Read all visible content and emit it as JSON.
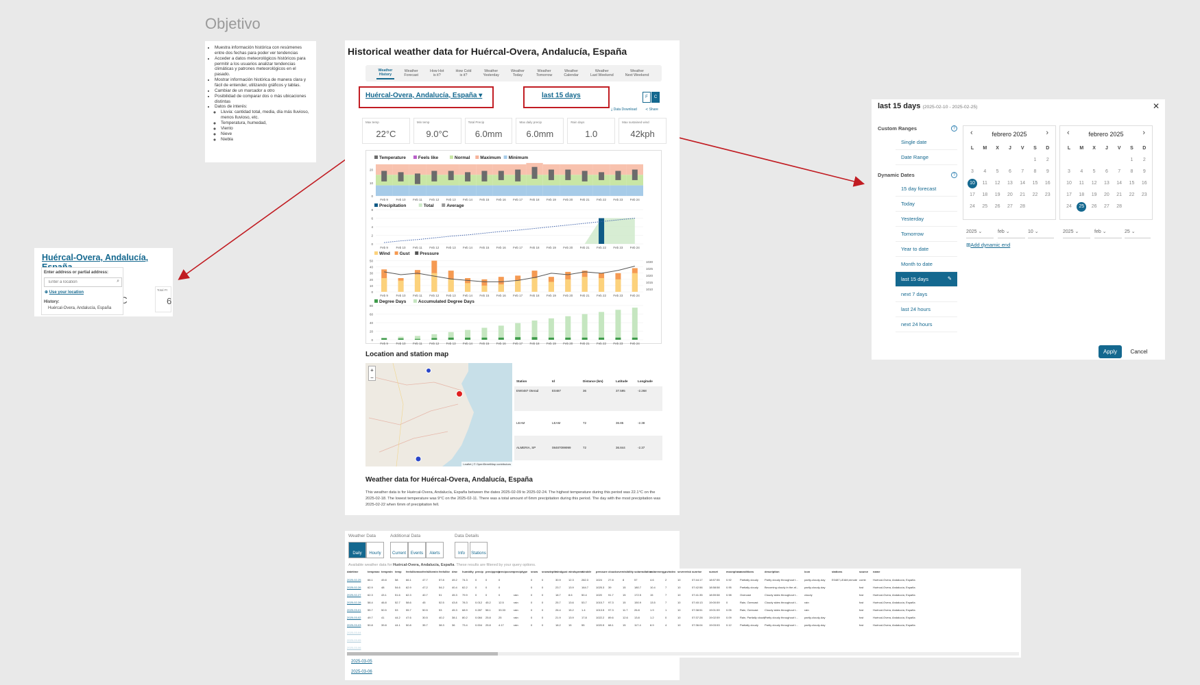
{
  "left_panel": {
    "title": "Objetivo",
    "bullets": [
      "Muestra información histórica con resúmenes entre dos fechas para poder ver tendencias",
      "Acceder a datos meteorológicos históricos para permitir a los usuarios analizar tendencias climáticas y patrones meteorológicos en el pasado.",
      "Mostrar información histórica de manera clara y fácil de entender, utilizando gráficos y tablas.",
      "Cambiar de un marcador a otro",
      "Posibilidad de comparar dos o más ubicaciones distintas",
      "Datos de interés:"
    ],
    "sub_bullets": [
      "Lluvia: cantidad total, media, día más lluvioso, menos lluvioso, etc.",
      "Temperatura, humedad,",
      "Viento",
      "Nieve",
      "Niebla"
    ]
  },
  "page": {
    "title": "Historical weather data for Huércal-Overa, Andalucía, España",
    "tabs": [
      {
        "l1": "Weather",
        "l2": "History"
      },
      {
        "l1": "Weather",
        "l2": "Forecast"
      },
      {
        "l1": "How Hot",
        "l2": "is it?"
      },
      {
        "l1": "How Cold",
        "l2": "is it?"
      },
      {
        "l1": "Weather",
        "l2": "Yesterday"
      },
      {
        "l1": "Weather",
        "l2": "Today"
      },
      {
        "l1": "Weather",
        "l2": "Tomorrow"
      },
      {
        "l1": "Weather",
        "l2": "Calendar"
      },
      {
        "l1": "Weather",
        "l2": "Last Weekend"
      },
      {
        "l1": "Weather",
        "l2": "Next Weekend"
      }
    ],
    "location": "Huércal-Overa, Andalucía, España ▾",
    "date_range": "last 15 days",
    "unit_f": "F",
    "unit_c": "C",
    "data_download": "Data Download",
    "share": "Share",
    "stats": [
      {
        "label": "Max temp",
        "value": "22°C"
      },
      {
        "label": "Min temp",
        "value": "9.0°C"
      },
      {
        "label": "Total Precip",
        "value": "6.0mm"
      },
      {
        "label": "Max daily precip",
        "value": "6.0mm"
      },
      {
        "label": "Rain days",
        "value": "1.0"
      },
      {
        "label": "Max sustained wind",
        "value": "42kph"
      }
    ],
    "map_section_title": "Location and station map",
    "map_attribution": "Leaflet | © OpenStreetMap contributors",
    "zoom_in": "+",
    "zoom_out": "−",
    "station_headers": [
      "Station",
      "Id",
      "Distance (km)",
      "Latitude",
      "Longitude"
    ],
    "stations": [
      [
        "EW0487 Oterad",
        "E0487",
        "36",
        "37.595",
        "-2.268"
      ],
      [
        "LEAM",
        "LEAM",
        "72",
        "36.85",
        "-2.38"
      ],
      [
        "ALMERIA, SP",
        "08487099999",
        "72",
        "36.844",
        "-2.37"
      ]
    ],
    "summary_title": "Weather data for Huércal-Overa, Andalucía, España",
    "summary_text": "This weather data is for Huércal-Overa, Andalucía, España between the dates 2025-02-09 to 2025-02-24. The highest temperature during this period was 22.1°C on the 2025-02-18. The lowest temperature was 9°C on the 2025-02-11. There was a total amount of 6mm precipitation during this period. The day with the most precipitation was 2025-02-22 when 6mm of precipitation fell."
  },
  "chart_data": [
    {
      "type": "bar",
      "legend": [
        "Temperature",
        "Feels like",
        "Normal",
        "Maximum",
        "Minimum"
      ],
      "categories": [
        "Feb 9",
        "Feb 10",
        "Feb 11",
        "Feb 12",
        "Feb 13",
        "Feb 14",
        "Feb 15",
        "Feb 16",
        "Feb 17",
        "Feb 18",
        "Feb 19",
        "Feb 20",
        "Feb 21",
        "Feb 22",
        "Feb 23",
        "Feb 24"
      ],
      "series": [
        {
          "name": "Temperature",
          "low": [
            11,
            11,
            9,
            11,
            12,
            11,
            11,
            12,
            11,
            13,
            12,
            12,
            11,
            12,
            12,
            12
          ],
          "high": [
            19,
            18,
            17,
            19,
            19,
            18,
            19,
            19,
            20,
            22,
            20,
            20,
            19,
            18,
            19,
            20
          ]
        },
        {
          "name": "Maximum",
          "values": [
            24,
            24,
            24,
            24,
            24,
            24,
            24,
            24,
            24,
            25,
            24,
            24,
            24,
            24,
            24,
            24
          ]
        },
        {
          "name": "Minimum",
          "values": [
            0,
            0,
            0,
            0,
            0,
            0,
            0,
            0,
            0,
            0,
            0,
            0,
            0,
            0,
            0,
            0
          ]
        }
      ],
      "y_ticks": [
        "20",
        "10",
        "0"
      ],
      "ylim": [
        0,
        26
      ]
    },
    {
      "type": "bar",
      "legend": [
        "Precipitation",
        "Total",
        "Average"
      ],
      "categories": [
        "Feb 9",
        "Feb 10",
        "Feb 11",
        "Feb 12",
        "Feb 13",
        "Feb 14",
        "Feb 15",
        "Feb 16",
        "Feb 17",
        "Feb 18",
        "Feb 19",
        "Feb 20",
        "Feb 21",
        "Feb 22",
        "Feb 23",
        "Feb 24"
      ],
      "series": [
        {
          "name": "Precipitation",
          "values": [
            0,
            0,
            0,
            0,
            0,
            0,
            0,
            0,
            0,
            0,
            0,
            0,
            0,
            6,
            0,
            0
          ]
        },
        {
          "name": "Total",
          "values": [
            0,
            0,
            0,
            0,
            0,
            0,
            0,
            0,
            0,
            0,
            0,
            0,
            0,
            6,
            6,
            6
          ]
        },
        {
          "name": "Average",
          "values": [
            0.3,
            0.7,
            1.0,
            1.4,
            1.8,
            2.1,
            2.5,
            2.9,
            3.2,
            3.6,
            4.0,
            4.4,
            4.8,
            5.2,
            5.6,
            6.0
          ]
        }
      ],
      "y_ticks": [
        "8",
        "6",
        "4",
        "2",
        "0"
      ],
      "ylim": [
        0,
        8
      ]
    },
    {
      "type": "bar",
      "legend": [
        "Wind",
        "Gust",
        "Pressure"
      ],
      "categories": [
        "Feb 9",
        "Feb 10",
        "Feb 11",
        "Feb 12",
        "Feb 13",
        "Feb 14",
        "Feb 15",
        "Feb 16",
        "Feb 17",
        "Feb 18",
        "Feb 19",
        "Feb 20",
        "Feb 21",
        "Feb 22",
        "Feb 23",
        "Feb 24"
      ],
      "series": [
        {
          "name": "Wind",
          "values": [
            22,
            18,
            28,
            30,
            20,
            14,
            10,
            12,
            18,
            22,
            16,
            20,
            24,
            22,
            20,
            30
          ]
        },
        {
          "name": "Gust",
          "values": [
            36,
            22,
            35,
            50,
            34,
            22,
            20,
            24,
            26,
            34,
            24,
            32,
            34,
            30,
            30,
            38
          ]
        },
        {
          "name": "Pressure",
          "values": [
            1022,
            1020,
            1021,
            1019,
            1017,
            1016,
            1015,
            1015,
            1016,
            1018,
            1021,
            1020,
            1022,
            1021,
            1023,
            1026
          ]
        }
      ],
      "y_ticks": [
        "50",
        "40",
        "30",
        "20",
        "10",
        "0"
      ],
      "y2_ticks": [
        "1030",
        "1025",
        "1020",
        "1015",
        "1010"
      ],
      "ylim": [
        0,
        55
      ]
    },
    {
      "type": "bar",
      "legend": [
        "Degree Days",
        "Accumulated Degree Days"
      ],
      "categories": [
        "Feb 9",
        "Feb 10",
        "Feb 11",
        "Feb 12",
        "Feb 13",
        "Feb 14",
        "Feb 15",
        "Feb 16",
        "Feb 17",
        "Feb 18",
        "Feb 19",
        "Feb 20",
        "Feb 21",
        "Feb 22",
        "Feb 23",
        "Feb 24"
      ],
      "series": [
        {
          "name": "Degree Days",
          "values": [
            4,
            3,
            2,
            4,
            5,
            5,
            5,
            5,
            6,
            6,
            5,
            5,
            5,
            5,
            5,
            5
          ]
        },
        {
          "name": "Accumulated Degree Days",
          "values": [
            4,
            7,
            9,
            13,
            18,
            23,
            28,
            33,
            39,
            45,
            50,
            55,
            60,
            65,
            70,
            75
          ]
        }
      ],
      "y_ticks": [
        "80",
        "60",
        "40",
        "20",
        "0"
      ],
      "ylim": [
        0,
        80
      ]
    }
  ],
  "loc_popup": {
    "title": "Huércal-Overa, Andalucía, España",
    "label": "Enter address or partial address:",
    "placeholder": "Enter a location",
    "use_location": "Use your location",
    "history_label": "History:",
    "history_item": "Huércal-Overa, Andalucía, España",
    "bg_temp": "°C",
    "bg_total": "Total Pr",
    "bg_six": "6"
  },
  "picker": {
    "title": "last 15 days",
    "range": "(2025-02-10 - 2025-02-25)",
    "close": "✕",
    "custom_label": "Custom Ranges",
    "custom_opts": [
      "Single date",
      "Date Range"
    ],
    "dynamic_label": "Dynamic Dates",
    "dynamic_opts": [
      "15 day forecast",
      "Today",
      "Yesterday",
      "Tomorrow",
      "Year to date",
      "Month to date",
      "last 15 days",
      "next 7 days",
      "last 24 hours",
      "next 24 hours"
    ],
    "help": "?",
    "edit": "✎",
    "calendars": [
      {
        "month": "febrero 2025",
        "year": "2025",
        "mon": "feb",
        "day": "10",
        "selected": 10
      },
      {
        "month": "febrero 2025",
        "year": "2025",
        "mon": "feb",
        "day": "25",
        "selected": 25
      }
    ],
    "dow": [
      "L",
      "M",
      "X",
      "J",
      "V",
      "S",
      "D"
    ],
    "add_dynamic_end": "Add dynamic end",
    "apply": "Apply",
    "cancel": "Cancel"
  },
  "data_section": {
    "weather_data_label": "Weather Data",
    "additional_label": "Additional Data",
    "details_label": "Data Details",
    "buttons": [
      "Daily",
      "Hourly",
      "Current",
      "Events",
      "Alerts",
      "Info",
      "Stations"
    ],
    "avail_prefix": "Available weather data for ",
    "avail_loc": "Huércal-Overa, Andalucía, España",
    "avail_suffix": ". These results are filtered by your query options.",
    "extra_dates": [
      "2025-03-05",
      "2025-03-06"
    ]
  },
  "big_table": {
    "headers": [
      "datetime",
      "tempmax",
      "tempmin",
      "temp",
      "feelslikemax",
      "feelslikemin",
      "feelslike",
      "dew",
      "humidity",
      "precip",
      "precipprob",
      "precipcover",
      "preciptype",
      "snow",
      "snowdepth",
      "windgust",
      "windspeed",
      "winddir",
      "pressure",
      "cloudcover",
      "visibility",
      "solarradiation",
      "solarenergy",
      "uvindex",
      "severerisk",
      "sunrise",
      "sunset",
      "moonphase",
      "conditions",
      "description",
      "icon",
      "stations",
      "source",
      "name"
    ],
    "rows": [
      [
        "2025-02-25",
        "66.1",
        "49.8",
        "58",
        "66.1",
        "47.7",
        "57.8",
        "49.2",
        "74.3",
        "0",
        "0",
        "0",
        "",
        "0",
        "0",
        "30.9",
        "12.3",
        "282.3",
        "1024",
        "27.8",
        "8",
        "57",
        "4.6",
        "2",
        "10",
        "07:44:17",
        "18:57:55",
        "0.92",
        "Partially cloudy",
        "Partly cloudy throughout t...",
        "partly-cloudy-day",
        "E0487,LEAM,remote",
        "comb",
        "Huércal-Overa, Andalucía, España"
      ],
      [
        "2025-02-26",
        "62.9",
        "48",
        "54.6",
        "62.9",
        "47.2",
        "54.2",
        "40.4",
        "62.2",
        "0",
        "0",
        "0",
        "",
        "0",
        "0",
        "23.7",
        "13.9",
        "164.7",
        "1025.3",
        "39",
        "15",
        "180.7",
        "10.4",
        "7",
        "10",
        "07:42:56",
        "18:58:58",
        "0.95",
        "Partially cloudy",
        "Becoming cloudy in the af...",
        "partly-cloudy-day",
        "",
        "fcst",
        "Huércal-Overa, Andalucía, España"
      ],
      [
        "2025-02-27",
        "62.3",
        "43.1",
        "51.6",
        "62.3",
        "40.7",
        "51",
        "45.3",
        "79.9",
        "0",
        "0",
        "0",
        "rain",
        "0",
        "0",
        "18.7",
        "8.6",
        "50.4",
        "1020",
        "91.7",
        "15",
        "172.5",
        "15",
        "7",
        "10",
        "07:41:35",
        "18:59:58",
        "0.98",
        "Overcast",
        "Cloudy skies throughout t...",
        "cloudy",
        "",
        "fcst",
        "Huércal-Overa, Andalucía, España"
      ],
      [
        "2025-02-28",
        "58.4",
        "46.8",
        "52.7",
        "58.6",
        "45",
        "52.5",
        "43.8",
        "78.3",
        "0.012",
        "45.2",
        "12.5",
        "rain",
        "0",
        "0",
        "25.7",
        "13.6",
        "53.7",
        "1015.7",
        "97.3",
        "15",
        "150.9",
        "13.5",
        "7",
        "10",
        "07:40:13",
        "19:00:59",
        "0",
        "Rain, Overcast",
        "Cloudy skies throughout t...",
        "rain",
        "",
        "fcst",
        "Huércal-Overa, Andalucía, España"
      ],
      [
        "2025-03-01",
        "55.7",
        "50.5",
        "53",
        "55.7",
        "50.5",
        "53",
        "45.3",
        "68.9",
        "0.287",
        "58.1",
        "33.33",
        "rain",
        "0",
        "0",
        "26.4",
        "15.2",
        "1.4",
        "1013.5",
        "97.3",
        "11.7",
        "26.8",
        "1.9",
        "1",
        "10",
        "07:38:51",
        "19:01:59",
        "0.05",
        "Rain, Overcast",
        "Cloudy skies throughout t...",
        "rain",
        "",
        "fcst",
        "Huércal-Overa, Andalucía, España"
      ],
      [
        "2025-03-02",
        "49.7",
        "41",
        "44.2",
        "47.6",
        "30.5",
        "40.2",
        "38.1",
        "80.2",
        "0.084",
        "25.8",
        "25",
        "rain",
        "0",
        "0",
        "21.9",
        "13.9",
        "17.8",
        "1022.2",
        "89.6",
        "12.6",
        "13.8",
        "1.2",
        "0",
        "10",
        "07:37:28",
        "19:02:59",
        "0.09",
        "Rain, Partially cloudy",
        "Partly cloudy throughout t...",
        "partly-cloudy-day",
        "",
        "fcst",
        "Huércal-Overa, Andalucía, España"
      ],
      [
        "2025-03-03",
        "50.8",
        "39.8",
        "44.1",
        "50.8",
        "35.7",
        "38.3",
        "36",
        "73.4",
        "0.004",
        "25.8",
        "4.17",
        "rain",
        "0",
        "0",
        "18.2",
        "15",
        "55",
        "1020.5",
        "68.1",
        "15",
        "117.4",
        "8.9",
        "4",
        "10",
        "07:36:04",
        "19:03:53",
        "0.12",
        "Partially cloudy",
        "Partly cloudy throughout t...",
        "partly-cloudy-day",
        "",
        "fcst",
        "Huércal-Overa, Andalucía, España"
      ],
      [
        "2025-03-04",
        "",
        "",
        "",
        "",
        "",
        "",
        "",
        "",
        "",
        "",
        "",
        "",
        "",
        "",
        "",
        "",
        "",
        "",
        "",
        "",
        "",
        "",
        "",
        "",
        "",
        "",
        "",
        "",
        "",
        "",
        "",
        "",
        ""
      ],
      [
        "2025-03-05",
        "",
        "",
        "",
        "",
        "",
        "",
        "",
        "",
        "",
        "",
        "",
        "",
        "",
        "",
        "",
        "",
        "",
        "",
        "",
        "",
        "",
        "",
        "",
        "",
        "",
        "",
        "",
        "",
        "",
        "",
        "",
        "",
        ""
      ],
      [
        "2025-03-06",
        "",
        "",
        "",
        "",
        "",
        "",
        "",
        "",
        "",
        "",
        "",
        "",
        "",
        "",
        "",
        "",
        "",
        "",
        "",
        "",
        "",
        "",
        "",
        "",
        "",
        "",
        "",
        "",
        "",
        "",
        "",
        "",
        ""
      ]
    ]
  },
  "colors": {
    "accent": "#14688f",
    "annotation_red": "#c11c22",
    "temp_bar": "#6b6b6b",
    "feels_like": "#b95fc9",
    "normal": "#c9e6a5",
    "maximum": "#f6b39a",
    "minimum": "#a6cbe8",
    "precip": "#0f5a86",
    "total": "#cde9c8",
    "wind": "#fcd27c",
    "gust": "#f59a52",
    "degree_days": "#3f9b4b",
    "acc_degree_days": "#c5e6c0"
  }
}
